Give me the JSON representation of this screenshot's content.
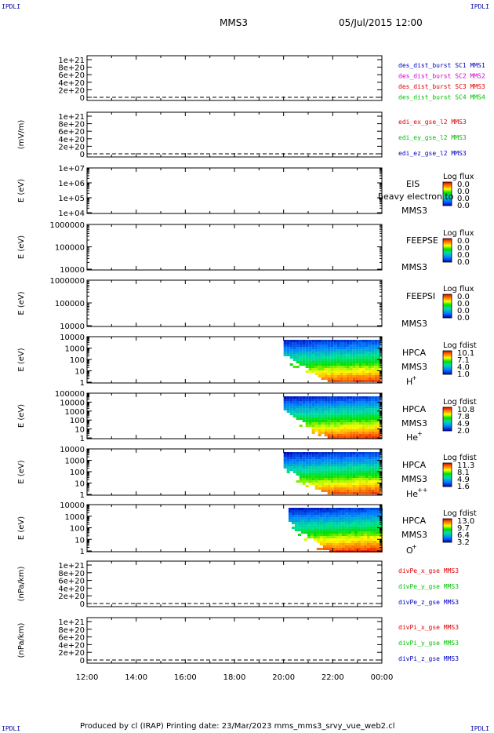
{
  "header": {
    "corner_label": "IPDLI",
    "title": "MMS3",
    "date": "05/Jul/2015 12:00"
  },
  "footer": {
    "text": "Produced by cl (IRAP)   Printing date: 23/Mar/2023   mms_mms3_srvy_vue_web2.cl"
  },
  "time_axis": {
    "labels": [
      "12:00",
      "14:00",
      "16:00",
      "18:00",
      "20:00",
      "22:00",
      "00:00"
    ]
  },
  "colors": {
    "blue": "#0000c0",
    "magenta": "#d000d0",
    "red": "#e00000",
    "green": "#00c000"
  },
  "chart_data": [
    {
      "type": "line",
      "ylabel": "",
      "ticks": [
        "1e+21",
        "8e+20",
        "6e+20",
        "4e+20",
        "2e+20",
        "0"
      ],
      "legend": [
        {
          "text": "des_dist_burst SC1 MMS1",
          "color": "#0000c0"
        },
        {
          "text": "des_dist_burst SC2 MMS2",
          "color": "#d000d0"
        },
        {
          "text": "des_dist_burst SC3 MMS3",
          "color": "#e00000"
        },
        {
          "text": "des_dist_burst SC4 MMS4",
          "color": "#00c000"
        }
      ]
    },
    {
      "type": "line",
      "ylabel": "(mV/m)",
      "ticks": [
        "1e+21",
        "8e+20",
        "6e+20",
        "4e+20",
        "2e+20",
        "0"
      ],
      "legend": [
        {
          "text": "edi_ex_gse_l2 MMS3",
          "color": "#e00000"
        },
        {
          "text": "edi_ey_gse_l2 MMS3",
          "color": "#00c000"
        },
        {
          "text": "edi_ez_gse_l2 MMS3",
          "color": "#0000c0"
        }
      ]
    },
    {
      "type": "heatmap",
      "ylabel": "E (eV)",
      "ticks": [
        "1e+07",
        "1e+06",
        "1e+05",
        "1e+04"
      ],
      "instrument": "EIS",
      "instrument_extra": "heavy electron to",
      "spacecraft": "MMS3",
      "species": "",
      "colorbar_title": "Log flux",
      "colorbar_ticks": [
        "0.0",
        "0.0",
        "0.0",
        "0.0"
      ]
    },
    {
      "type": "heatmap",
      "ylabel": "E (eV)",
      "ticks": [
        "1000000",
        "100000",
        "10000"
      ],
      "instrument": "FEEPSE",
      "spacecraft": "MMS3",
      "species": "",
      "colorbar_title": "Log flux",
      "colorbar_ticks": [
        "0.0",
        "0.0",
        "0.0",
        "0.0"
      ]
    },
    {
      "type": "heatmap",
      "ylabel": "E (eV)",
      "ticks": [
        "1000000",
        "100000",
        "10000"
      ],
      "instrument": "FEEPSI",
      "spacecraft": "MMS3",
      "species": "",
      "colorbar_title": "Log flux",
      "colorbar_ticks": [
        "0.0",
        "0.0",
        "0.0",
        "0.0"
      ]
    },
    {
      "type": "heatmap",
      "ylabel": "E (eV)",
      "ticks": [
        "10000",
        "1000",
        "100",
        "10",
        "1"
      ],
      "instrument": "HPCA",
      "spacecraft": "MMS3",
      "species": "H",
      "species_sup": "+",
      "colorbar_title": "Log fdist",
      "colorbar_ticks": [
        "10.1",
        "7.1",
        "4.0",
        "1.0"
      ],
      "data_start_hour": 20.0
    },
    {
      "type": "heatmap",
      "ylabel": "E (eV)",
      "ticks": [
        "100000",
        "10000",
        "1000",
        "100",
        "10",
        "1"
      ],
      "instrument": "HPCA",
      "spacecraft": "MMS3",
      "species": "He",
      "species_sup": "+",
      "colorbar_title": "Log fdist",
      "colorbar_ticks": [
        "10.8",
        "7.8",
        "4.9",
        "2.0"
      ],
      "data_start_hour": 20.0
    },
    {
      "type": "heatmap",
      "ylabel": "E (eV)",
      "ticks": [
        "10000",
        "1000",
        "100",
        "10",
        "1"
      ],
      "instrument": "HPCA",
      "spacecraft": "MMS3",
      "species": "He",
      "species_sup": "++",
      "colorbar_title": "Log fdist",
      "colorbar_ticks": [
        "11.3",
        "8.1",
        "4.9",
        "1.6"
      ],
      "data_start_hour": 20.0
    },
    {
      "type": "heatmap",
      "ylabel": "E (eV)",
      "ticks": [
        "10000",
        "1000",
        "100",
        "10",
        "1"
      ],
      "instrument": "HPCA",
      "spacecraft": "MMS3",
      "species": "O",
      "species_sup": "+",
      "colorbar_title": "Log fdist",
      "colorbar_ticks": [
        "13.0",
        "9.7",
        "6.4",
        "3.2"
      ],
      "data_start_hour": 20.2
    },
    {
      "type": "line",
      "ylabel": "(nPa/km)",
      "ticks": [
        "1e+21",
        "8e+20",
        "6e+20",
        "4e+20",
        "2e+20",
        "0"
      ],
      "legend": [
        {
          "text": "divPe_x_gse MMS3",
          "color": "#e00000"
        },
        {
          "text": "divPe_y_gse MMS3",
          "color": "#00c000"
        },
        {
          "text": "divPe_z_gse MMS3",
          "color": "#0000c0"
        }
      ]
    },
    {
      "type": "line",
      "ylabel": "(nPa/km)",
      "ticks": [
        "1e+21",
        "8e+20",
        "6e+20",
        "4e+20",
        "2e+20",
        "0"
      ],
      "legend": [
        {
          "text": "divPi_x_gse MMS3",
          "color": "#e00000"
        },
        {
          "text": "divPi_y_gse MMS3",
          "color": "#00c000"
        },
        {
          "text": "divPi_z_gse MMS3",
          "color": "#0000c0"
        }
      ]
    }
  ]
}
